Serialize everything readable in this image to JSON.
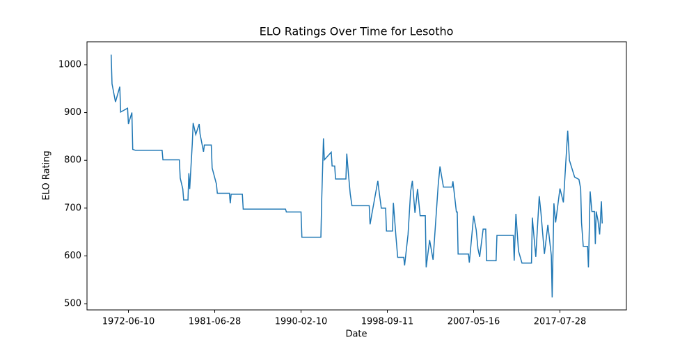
{
  "chart_data": {
    "type": "line",
    "title": "ELO Ratings Over Time for Lesotho",
    "x_label": "Date",
    "y_label": "ELO Rating",
    "xlim": [
      -28,
      597
    ],
    "ylim": [
      487,
      1048
    ],
    "xticks": [
      {
        "value": 20,
        "label": "1972-06-10"
      },
      {
        "value": 120,
        "label": "1981-06-28"
      },
      {
        "value": 220,
        "label": "1990-02-10"
      },
      {
        "value": 320,
        "label": "1998-09-11"
      },
      {
        "value": 420,
        "label": "2007-05-16"
      },
      {
        "value": 520,
        "label": "2017-07-28"
      }
    ],
    "yticks": [
      500,
      600,
      700,
      800,
      900,
      1000
    ],
    "grid": false,
    "series": [
      {
        "color": "#1f77b4",
        "x": [
          0,
          1,
          5,
          10,
          11,
          19,
          20,
          24,
          25,
          28,
          59,
          60,
          79,
          80,
          83,
          84,
          89,
          90,
          91,
          94,
          95,
          98,
          102,
          103,
          107,
          108,
          116,
          117,
          122,
          123,
          137,
          138,
          139,
          152,
          153,
          202,
          203,
          220,
          221,
          243,
          244,
          246,
          247,
          255,
          256,
          259,
          260,
          272,
          273,
          275,
          277,
          279,
          299,
          300,
          302,
          309,
          310,
          313,
          318,
          319,
          326,
          327,
          330,
          332,
          339,
          340,
          344,
          347,
          349,
          352,
          355,
          358,
          364,
          365,
          369,
          373,
          379,
          381,
          385,
          395,
          396,
          400,
          401,
          402,
          414,
          415,
          420,
          423,
          425,
          427,
          431,
          434,
          435,
          446,
          447,
          466,
          467,
          469,
          472,
          476,
          487,
          488,
          492,
          496,
          498,
          502,
          506,
          510,
          511,
          513,
          515,
          520,
          524,
          529,
          531,
          537,
          542,
          544,
          545,
          547,
          552,
          553,
          555,
          557,
          560,
          561,
          562,
          564,
          566,
          568,
          569
        ],
        "values": [
          1021,
          960,
          922,
          954,
          901,
          909,
          876,
          900,
          823,
          821,
          821,
          801,
          801,
          763,
          740,
          717,
          717,
          773,
          740,
          835,
          878,
          854,
          876,
          855,
          818,
          832,
          832,
          784,
          750,
          731,
          731,
          710,
          729,
          729,
          698,
          698,
          692,
          692,
          639,
          639,
          720,
          846,
          801,
          817,
          788,
          788,
          761,
          761,
          814,
          770,
          730,
          705,
          705,
          666,
          687,
          757,
          741,
          700,
          700,
          652,
          652,
          711,
          640,
          597,
          597,
          580,
          645,
          735,
          757,
          690,
          740,
          684,
          684,
          576,
          633,
          592,
          750,
          787,
          744,
          744,
          756,
          692,
          692,
          604,
          604,
          586,
          684,
          654,
          615,
          598,
          656,
          656,
          590,
          590,
          643,
          643,
          590,
          688,
          610,
          585,
          585,
          680,
          598,
          725,
          690,
          604,
          665,
          601,
          513,
          710,
          670,
          741,
          712,
          862,
          800,
          765,
          760,
          741,
          670,
          620,
          620,
          576,
          735,
          693,
          693,
          625,
          693,
          675,
          645,
          714,
          668
        ]
      }
    ]
  }
}
